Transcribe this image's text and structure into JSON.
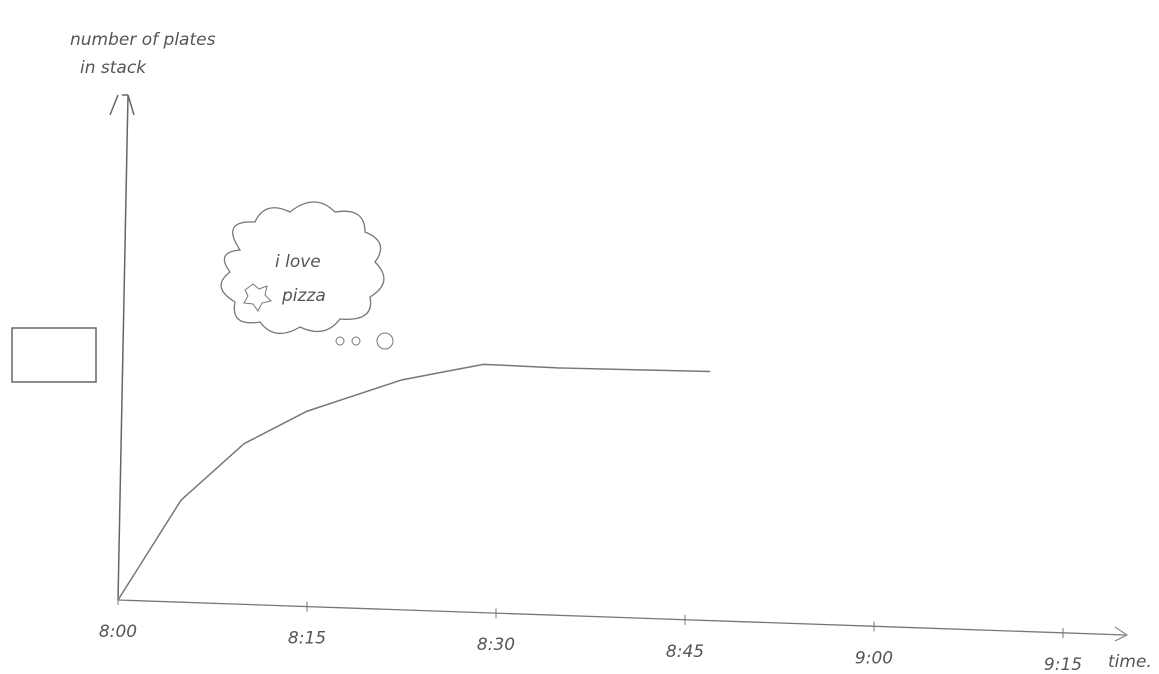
{
  "chart_data": {
    "type": "line",
    "ylabel": [
      "number of plates",
      "in stack"
    ],
    "xlabel": "time.",
    "annotation": [
      "i love",
      "pizza"
    ],
    "x": [
      0,
      5,
      10,
      15,
      22.5,
      29,
      35,
      47
    ],
    "values": [
      0,
      0.83,
      1.3,
      1.57,
      1.83,
      1.96,
      1.93,
      1.9
    ],
    "color": "#777777",
    "xlim": [
      0,
      80
    ],
    "ylim": [
      0,
      4.2
    ],
    "xticks": [
      {
        "value": 0,
        "label": "8:00"
      },
      {
        "value": 15,
        "label": "8:15"
      },
      {
        "value": 30,
        "label": "8:30"
      },
      {
        "value": 45,
        "label": "8:45"
      },
      {
        "value": 60,
        "label": "9:00"
      },
      {
        "value": 75,
        "label": "9:15"
      }
    ]
  }
}
